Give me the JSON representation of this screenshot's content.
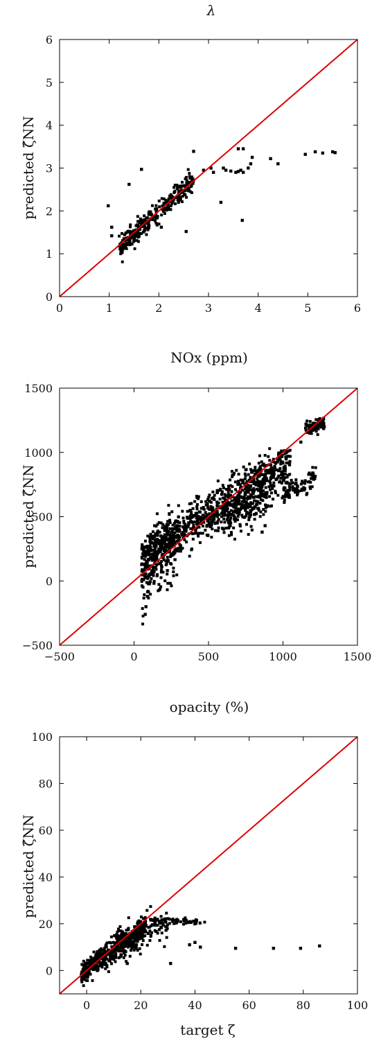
{
  "chart_data": [
    {
      "type": "scatter",
      "title": "λ",
      "xlabel": "",
      "ylabel": "predicted ζ̂NN",
      "xlim": [
        0,
        6
      ],
      "ylim": [
        0,
        6
      ],
      "xticks": [
        0,
        1,
        2,
        3,
        4,
        5,
        6
      ],
      "yticks": [
        0,
        1,
        2,
        3,
        4,
        5,
        6
      ],
      "xtick_labels": [
        "0",
        "1",
        "2",
        "3",
        "4",
        "5",
        "6"
      ],
      "ytick_labels": [
        "0",
        "1",
        "2",
        "3",
        "4",
        "5",
        "6"
      ],
      "reference_line": {
        "x": [
          0,
          6
        ],
        "y": [
          0,
          6
        ],
        "color": "#dd0000"
      },
      "series": [
        {
          "color": "#000000",
          "clusters": [
            {
              "x0": 1.25,
              "x1": 2.7,
              "slope": 1.05,
              "intercept": -0.1,
              "spread": 0.12,
              "count": 260
            },
            {
              "x0": 1.2,
              "x1": 1.6,
              "slope": 0.7,
              "intercept": 0.3,
              "spread": 0.1,
              "count": 60
            }
          ],
          "points": [
            {
              "x": 0.98,
              "y": 2.12
            },
            {
              "x": 1.05,
              "y": 1.62
            },
            {
              "x": 1.05,
              "y": 1.42
            },
            {
              "x": 1.65,
              "y": 2.97
            },
            {
              "x": 1.4,
              "y": 2.62
            },
            {
              "x": 2.05,
              "y": 1.62
            },
            {
              "x": 2.55,
              "y": 1.52
            },
            {
              "x": 2.7,
              "y": 3.39
            },
            {
              "x": 3.05,
              "y": 3.0
            },
            {
              "x": 3.25,
              "y": 2.2
            },
            {
              "x": 3.3,
              "y": 3.0
            },
            {
              "x": 3.35,
              "y": 2.95
            },
            {
              "x": 3.45,
              "y": 2.93
            },
            {
              "x": 3.55,
              "y": 2.9
            },
            {
              "x": 3.6,
              "y": 2.92
            },
            {
              "x": 3.65,
              "y": 2.95
            },
            {
              "x": 3.7,
              "y": 2.9
            },
            {
              "x": 3.8,
              "y": 3.0
            },
            {
              "x": 3.85,
              "y": 3.1
            },
            {
              "x": 3.88,
              "y": 3.25
            },
            {
              "x": 3.6,
              "y": 3.45
            },
            {
              "x": 3.7,
              "y": 3.45
            },
            {
              "x": 3.68,
              "y": 1.78
            },
            {
              "x": 4.25,
              "y": 3.22
            },
            {
              "x": 4.4,
              "y": 3.1
            },
            {
              "x": 4.95,
              "y": 3.32
            },
            {
              "x": 5.15,
              "y": 3.38
            },
            {
              "x": 5.3,
              "y": 3.35
            },
            {
              "x": 5.5,
              "y": 3.38
            },
            {
              "x": 5.55,
              "y": 3.36
            },
            {
              "x": 3.1,
              "y": 2.9
            },
            {
              "x": 2.9,
              "y": 2.95
            }
          ]
        }
      ]
    },
    {
      "type": "scatter",
      "title": "NOx (ppm)",
      "xlabel": "",
      "ylabel": "predicted ζ̂NN",
      "xlim": [
        -500,
        1500
      ],
      "ylim": [
        -500,
        1500
      ],
      "xticks": [
        -500,
        0,
        500,
        1000,
        1500
      ],
      "yticks": [
        -500,
        0,
        500,
        1000,
        1500
      ],
      "xtick_labels": [
        "−500",
        "0",
        "500",
        "1000",
        "1500"
      ],
      "ytick_labels": [
        "−500",
        "0",
        "500",
        "1000",
        "1500"
      ],
      "reference_line": {
        "x": [
          -500,
          1500
        ],
        "y": [
          -500,
          1500
        ],
        "color": "#dd0000"
      },
      "series": [
        {
          "color": "#000000",
          "clusters": [
            {
              "x0": 50,
              "x1": 1050,
              "slope": 0.75,
              "intercept": 130,
              "spread": 90,
              "count": 900
            },
            {
              "x0": 50,
              "x1": 300,
              "slope": 1.1,
              "intercept": 0,
              "spread": 120,
              "count": 250
            },
            {
              "x0": 1150,
              "x1": 1280,
              "slope": 0.35,
              "intercept": 780,
              "spread": 25,
              "count": 80
            },
            {
              "x0": 1000,
              "x1": 1220,
              "slope": 0.6,
              "intercept": 70,
              "spread": 40,
              "count": 80
            },
            {
              "x0": 600,
              "x1": 900,
              "slope": 0.3,
              "intercept": 320,
              "spread": 80,
              "count": 120
            }
          ],
          "points": [
            {
              "x": 75,
              "y": -260
            },
            {
              "x": 80,
              "y": -200
            },
            {
              "x": 90,
              "y": -120
            },
            {
              "x": 860,
              "y": 380
            },
            {
              "x": 880,
              "y": 430
            },
            {
              "x": 1200,
              "y": 840
            },
            {
              "x": 1120,
              "y": 1080
            },
            {
              "x": 1180,
              "y": 1150
            }
          ]
        }
      ]
    },
    {
      "type": "scatter",
      "title": "opacity (%)",
      "xlabel": "target ζ",
      "ylabel": "predicted ζ̂NN",
      "xlim": [
        -10,
        100
      ],
      "ylim": [
        -10,
        100
      ],
      "xticks": [
        0,
        20,
        40,
        60,
        80,
        100
      ],
      "yticks": [
        0,
        20,
        40,
        60,
        80,
        100
      ],
      "xtick_labels": [
        "0",
        "20",
        "40",
        "60",
        "80",
        "100"
      ],
      "ytick_labels": [
        "0",
        "20",
        "40",
        "60",
        "80",
        "100"
      ],
      "reference_line": {
        "x": [
          -10,
          100
        ],
        "y": [
          -10,
          100
        ],
        "color": "#dd0000"
      },
      "series": [
        {
          "color": "#000000",
          "clusters": [
            {
              "x0": -2,
              "x1": 22,
              "slope": 0.8,
              "intercept": 0.5,
              "spread": 2.5,
              "count": 500
            },
            {
              "x0": 10,
              "x1": 30,
              "slope": 0.4,
              "intercept": 8,
              "spread": 3.5,
              "count": 150
            },
            {
              "x0": 25,
              "x1": 44,
              "slope": -0.02,
              "intercept": 22,
              "spread": 0.8,
              "count": 60
            }
          ],
          "points": [
            {
              "x": 38,
              "y": 11
            },
            {
              "x": 40,
              "y": 12
            },
            {
              "x": 42,
              "y": 10
            },
            {
              "x": 55,
              "y": 9.5
            },
            {
              "x": 69,
              "y": 9.5
            },
            {
              "x": 79,
              "y": 9.5
            },
            {
              "x": 86,
              "y": 10.5
            },
            {
              "x": 15,
              "y": 3
            },
            {
              "x": 31,
              "y": 3
            }
          ]
        }
      ]
    }
  ]
}
